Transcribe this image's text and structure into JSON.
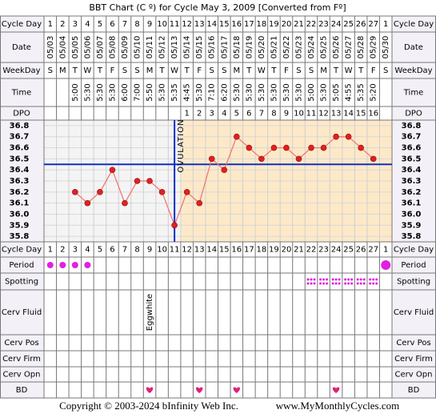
{
  "title": "BBT Chart (C º) for Cycle May 3, 2009  [Converted from Fº]",
  "labels": {
    "cycle_day": "Cycle Day",
    "date": "Date",
    "weekday": "WeekDay",
    "time": "Time",
    "dpo": "DPO",
    "period": "Period",
    "spotting": "Spotting",
    "cerv_fluid": "Cerv Fluid",
    "cerv_pos": "Cerv Pos",
    "cerv_firm": "Cerv Firm",
    "cerv_opn": "Cerv Opn",
    "bd": "BD"
  },
  "footer": {
    "copyright": "Copyright © 2003-2024 bInfinity Web Inc.",
    "site": "www.MyMonthlyCycles.com"
  },
  "chart_data": {
    "type": "line",
    "categories": [
      "1",
      "2",
      "3",
      "4",
      "5",
      "6",
      "7",
      "8",
      "9",
      "10",
      "11",
      "12",
      "13",
      "14",
      "15",
      "16",
      "17",
      "18",
      "19",
      "20",
      "21",
      "22",
      "23",
      "24",
      "25",
      "26",
      "27",
      "1"
    ],
    "dates": [
      "05/03",
      "05/04",
      "05/05",
      "05/06",
      "05/07",
      "05/08",
      "05/09",
      "05/10",
      "05/11",
      "05/12",
      "05/13",
      "05/14",
      "05/15",
      "05/16",
      "05/17",
      "05/18",
      "05/19",
      "05/20",
      "05/21",
      "05/22",
      "05/23",
      "05/24",
      "05/25",
      "05/26",
      "05/27",
      "05/28",
      "05/29",
      "05/30"
    ],
    "weekdays": [
      "S",
      "M",
      "T",
      "W",
      "T",
      "F",
      "S",
      "S",
      "M",
      "T",
      "W",
      "T",
      "F",
      "S",
      "S",
      "M",
      "T",
      "W",
      "T",
      "F",
      "S",
      "S",
      "M",
      "T",
      "W",
      "T",
      "F",
      "S"
    ],
    "times": [
      null,
      null,
      "5:00",
      "5:30",
      "5:30",
      "5:30",
      "6:00",
      "7:00",
      "5:50",
      "5:30",
      "5:35",
      "4:45",
      "5:30",
      "7:10",
      "6:20",
      "5:30",
      "5:30",
      "5:30",
      "5:30",
      "5:30",
      "5:30",
      "5:00",
      "5:30",
      "5:05",
      "4:55",
      "5:35",
      "5:20",
      null
    ],
    "dpo": [
      null,
      null,
      null,
      null,
      null,
      null,
      null,
      null,
      null,
      null,
      null,
      1,
      2,
      3,
      4,
      5,
      6,
      7,
      8,
      9,
      10,
      11,
      12,
      13,
      14,
      15,
      16,
      null
    ],
    "series": [
      {
        "color": "#e02020",
        "line_color": "#f07070",
        "values": [
          null,
          null,
          36.2,
          36.1,
          36.2,
          36.4,
          36.1,
          36.3,
          36.3,
          36.2,
          35.9,
          36.2,
          36.1,
          36.5,
          36.4,
          36.7,
          36.6,
          36.5,
          36.6,
          36.6,
          36.5,
          36.6,
          36.6,
          36.7,
          36.7,
          36.6,
          36.5,
          null
        ]
      }
    ],
    "ylim": [
      35.75,
      36.85
    ],
    "yticks": [
      36.8,
      36.7,
      36.6,
      36.5,
      36.4,
      36.3,
      36.2,
      36.1,
      {
        "value": 36,
        "label": "36.0"
      },
      35.9,
      35.8
    ],
    "coverline": 36.45,
    "coverline_color": "#1030c0",
    "ovulation": {
      "label": "OVULATION",
      "index": 10
    },
    "period": [
      1,
      1,
      1,
      1,
      null,
      null,
      null,
      null,
      null,
      null,
      null,
      null,
      null,
      null,
      null,
      null,
      null,
      null,
      null,
      null,
      null,
      null,
      null,
      null,
      null,
      null,
      null,
      2
    ],
    "period_color": "#e020e0",
    "spotting": [
      null,
      null,
      null,
      null,
      null,
      null,
      null,
      null,
      null,
      null,
      null,
      null,
      null,
      null,
      null,
      null,
      null,
      null,
      null,
      null,
      null,
      1,
      1,
      1,
      1,
      1,
      1,
      null
    ],
    "cerv_fluid": [
      null,
      null,
      null,
      null,
      null,
      null,
      null,
      null,
      "Eggwhite",
      null,
      null,
      null,
      null,
      null,
      null,
      null,
      null,
      null,
      null,
      null,
      null,
      null,
      null,
      null,
      null,
      null,
      null,
      null
    ],
    "bd": [
      null,
      null,
      null,
      null,
      null,
      null,
      null,
      null,
      1,
      null,
      null,
      null,
      1,
      null,
      null,
      1,
      null,
      null,
      null,
      null,
      null,
      null,
      null,
      1,
      null,
      null,
      null,
      null
    ],
    "bd_color": "#e0207a"
  }
}
